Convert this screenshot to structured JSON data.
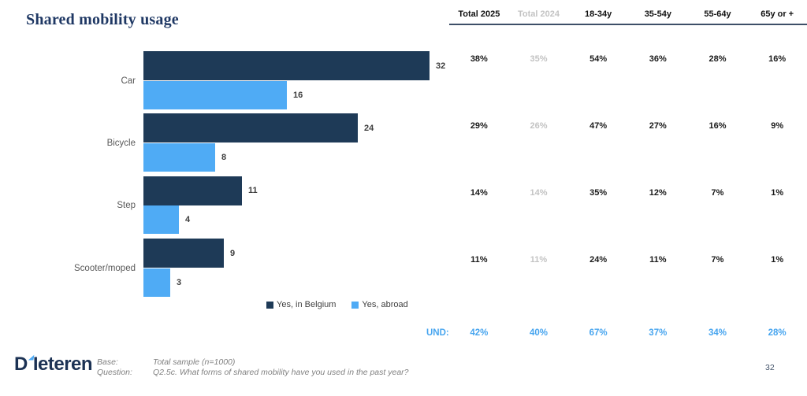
{
  "title": "Shared mobility usage",
  "chart_data": {
    "type": "bar",
    "orientation": "horizontal",
    "categories": [
      "Car",
      "Bicycle",
      "Step",
      "Scooter/moped"
    ],
    "series": [
      {
        "name": "Yes, in Belgium",
        "color": "#1e3a57",
        "values": [
          32,
          24,
          11,
          9
        ]
      },
      {
        "name": "Yes, abroad",
        "color": "#4fabf5",
        "values": [
          16,
          8,
          4,
          3
        ]
      }
    ],
    "value_labels": true,
    "xlim": [
      0,
      40
    ],
    "grid": false,
    "legend_position": "bottom"
  },
  "table": {
    "headers": [
      "Total 2025",
      "Total 2024",
      "18-34y",
      "35-54y",
      "55-64y",
      "65y or +"
    ],
    "muted_column_index": 1,
    "rows": [
      {
        "category": "Car",
        "values": [
          "38%",
          "35%",
          "54%",
          "36%",
          "28%",
          "16%"
        ]
      },
      {
        "category": "Bicycle",
        "values": [
          "29%",
          "26%",
          "47%",
          "27%",
          "16%",
          "9%"
        ]
      },
      {
        "category": "Step",
        "values": [
          "14%",
          "14%",
          "35%",
          "12%",
          "7%",
          "1%"
        ]
      },
      {
        "category": "Scooter/moped",
        "values": [
          "11%",
          "11%",
          "24%",
          "11%",
          "7%",
          "1%"
        ]
      }
    ],
    "und": {
      "label": "UND:",
      "values": [
        "42%",
        "40%",
        "67%",
        "37%",
        "34%",
        "28%"
      ]
    }
  },
  "footer": {
    "logo_d": "D",
    "logo_rest": "Ieteren",
    "base_label": "Base:",
    "base_value": "Total sample (n=1000)",
    "question_label": "Question:",
    "question_value": "Q2.5c. What forms of shared mobility have you used in the past year?",
    "page_number": "32"
  },
  "colors": {
    "navy": "#1e3a57",
    "light_blue": "#4fabf5",
    "title_navy": "#1f3864",
    "muted_gray": "#c3c3c3",
    "und_blue": "#47a5ef"
  }
}
